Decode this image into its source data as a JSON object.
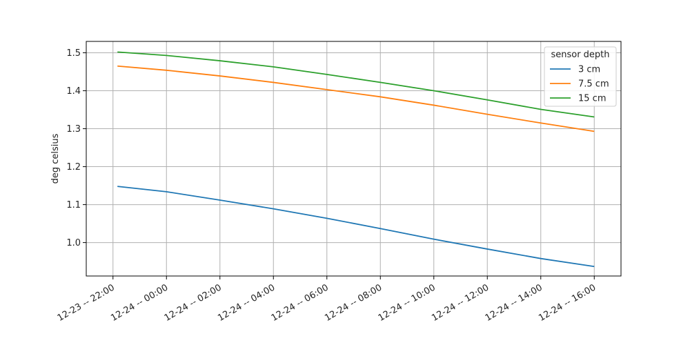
{
  "chart_data": {
    "type": "line",
    "title": "",
    "xlabel": "",
    "ylabel": "deg celsius",
    "x_ticks": [
      {
        "t": "12-23 22:00",
        "label": "12-23 -- 22:00"
      },
      {
        "t": "12-24 00:00",
        "label": "12-24 -- 00:00"
      },
      {
        "t": "12-24 02:00",
        "label": "12-24 -- 02:00"
      },
      {
        "t": "12-24 04:00",
        "label": "12-24 -- 04:00"
      },
      {
        "t": "12-24 06:00",
        "label": "12-24 -- 06:00"
      },
      {
        "t": "12-24 08:00",
        "label": "12-24 -- 08:00"
      },
      {
        "t": "12-24 10:00",
        "label": "12-24 -- 10:00"
      },
      {
        "t": "12-24 12:00",
        "label": "12-24 -- 12:00"
      },
      {
        "t": "12-24 14:00",
        "label": "12-24 -- 14:00"
      },
      {
        "t": "12-24 16:00",
        "label": "12-24 -- 16:00"
      }
    ],
    "y_ticks": [
      "1.0",
      "1.1",
      "1.2",
      "1.3",
      "1.4",
      "1.5"
    ],
    "xlim": [
      "12-23 21:00",
      "12-24 17:00"
    ],
    "ylim": [
      0.912,
      1.53
    ],
    "grid": true,
    "legend": {
      "title": "sensor depth",
      "placement": "top-right"
    },
    "x": [
      "12-23 22:10",
      "12-24 00:00",
      "12-24 02:00",
      "12-24 04:00",
      "12-24 06:00",
      "12-24 08:00",
      "12-24 10:00",
      "12-24 12:00",
      "12-24 14:00",
      "12-24 16:00"
    ],
    "series": [
      {
        "name": "3 cm",
        "color": "#1f77b4",
        "values": [
          1.148,
          1.134,
          1.112,
          1.089,
          1.064,
          1.037,
          1.009,
          0.983,
          0.958,
          0.937
        ]
      },
      {
        "name": "7.5 cm",
        "color": "#ff7f0e",
        "values": [
          1.465,
          1.454,
          1.439,
          1.422,
          1.403,
          1.384,
          1.362,
          1.338,
          1.315,
          1.293
        ]
      },
      {
        "name": "15 cm",
        "color": "#2ca02c",
        "values": [
          1.502,
          1.493,
          1.479,
          1.463,
          1.443,
          1.422,
          1.4,
          1.376,
          1.351,
          1.331
        ]
      }
    ]
  }
}
